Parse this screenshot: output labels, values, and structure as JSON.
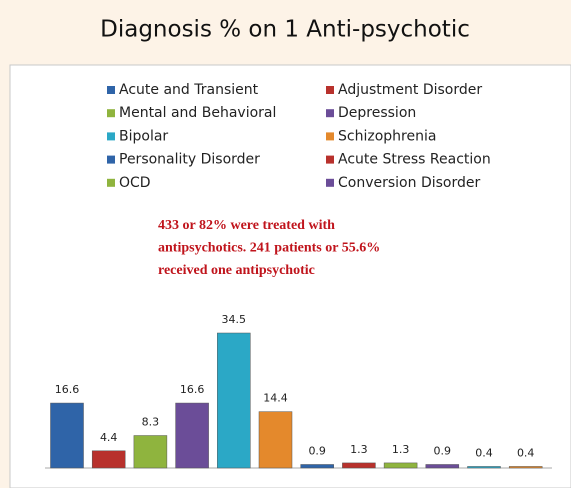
{
  "chart_data": {
    "type": "bar",
    "title": "Diagnosis % on 1 Anti-psychotic",
    "categories": [
      "Acute and Transient",
      "Adjustment Disorder",
      "Mental and Behavioral",
      "Depression",
      "Bipolar",
      "Schizophrenia",
      "Personality Disorder",
      "Acute Stress Reaction",
      "OCD",
      "Conversion Disorder",
      null,
      null
    ],
    "values": [
      16.6,
      4.4,
      8.3,
      16.6,
      34.5,
      14.4,
      0.9,
      1.3,
      1.3,
      0.9,
      0.4,
      0.4
    ],
    "colors": [
      "#2f64a8",
      "#b8312c",
      "#8fb43e",
      "#6b4d98",
      "#2ba8c6",
      "#e4892c",
      "#2f64a8",
      "#b8312c",
      "#8fb43e",
      "#6b4d98",
      "#2ba8c6",
      "#e4892c"
    ],
    "annotation": [
      "433 or 82% were treated with",
      "antipsychotics. 241 patients or 55.6%",
      "received one antipsychotic"
    ],
    "legend": "top"
  }
}
